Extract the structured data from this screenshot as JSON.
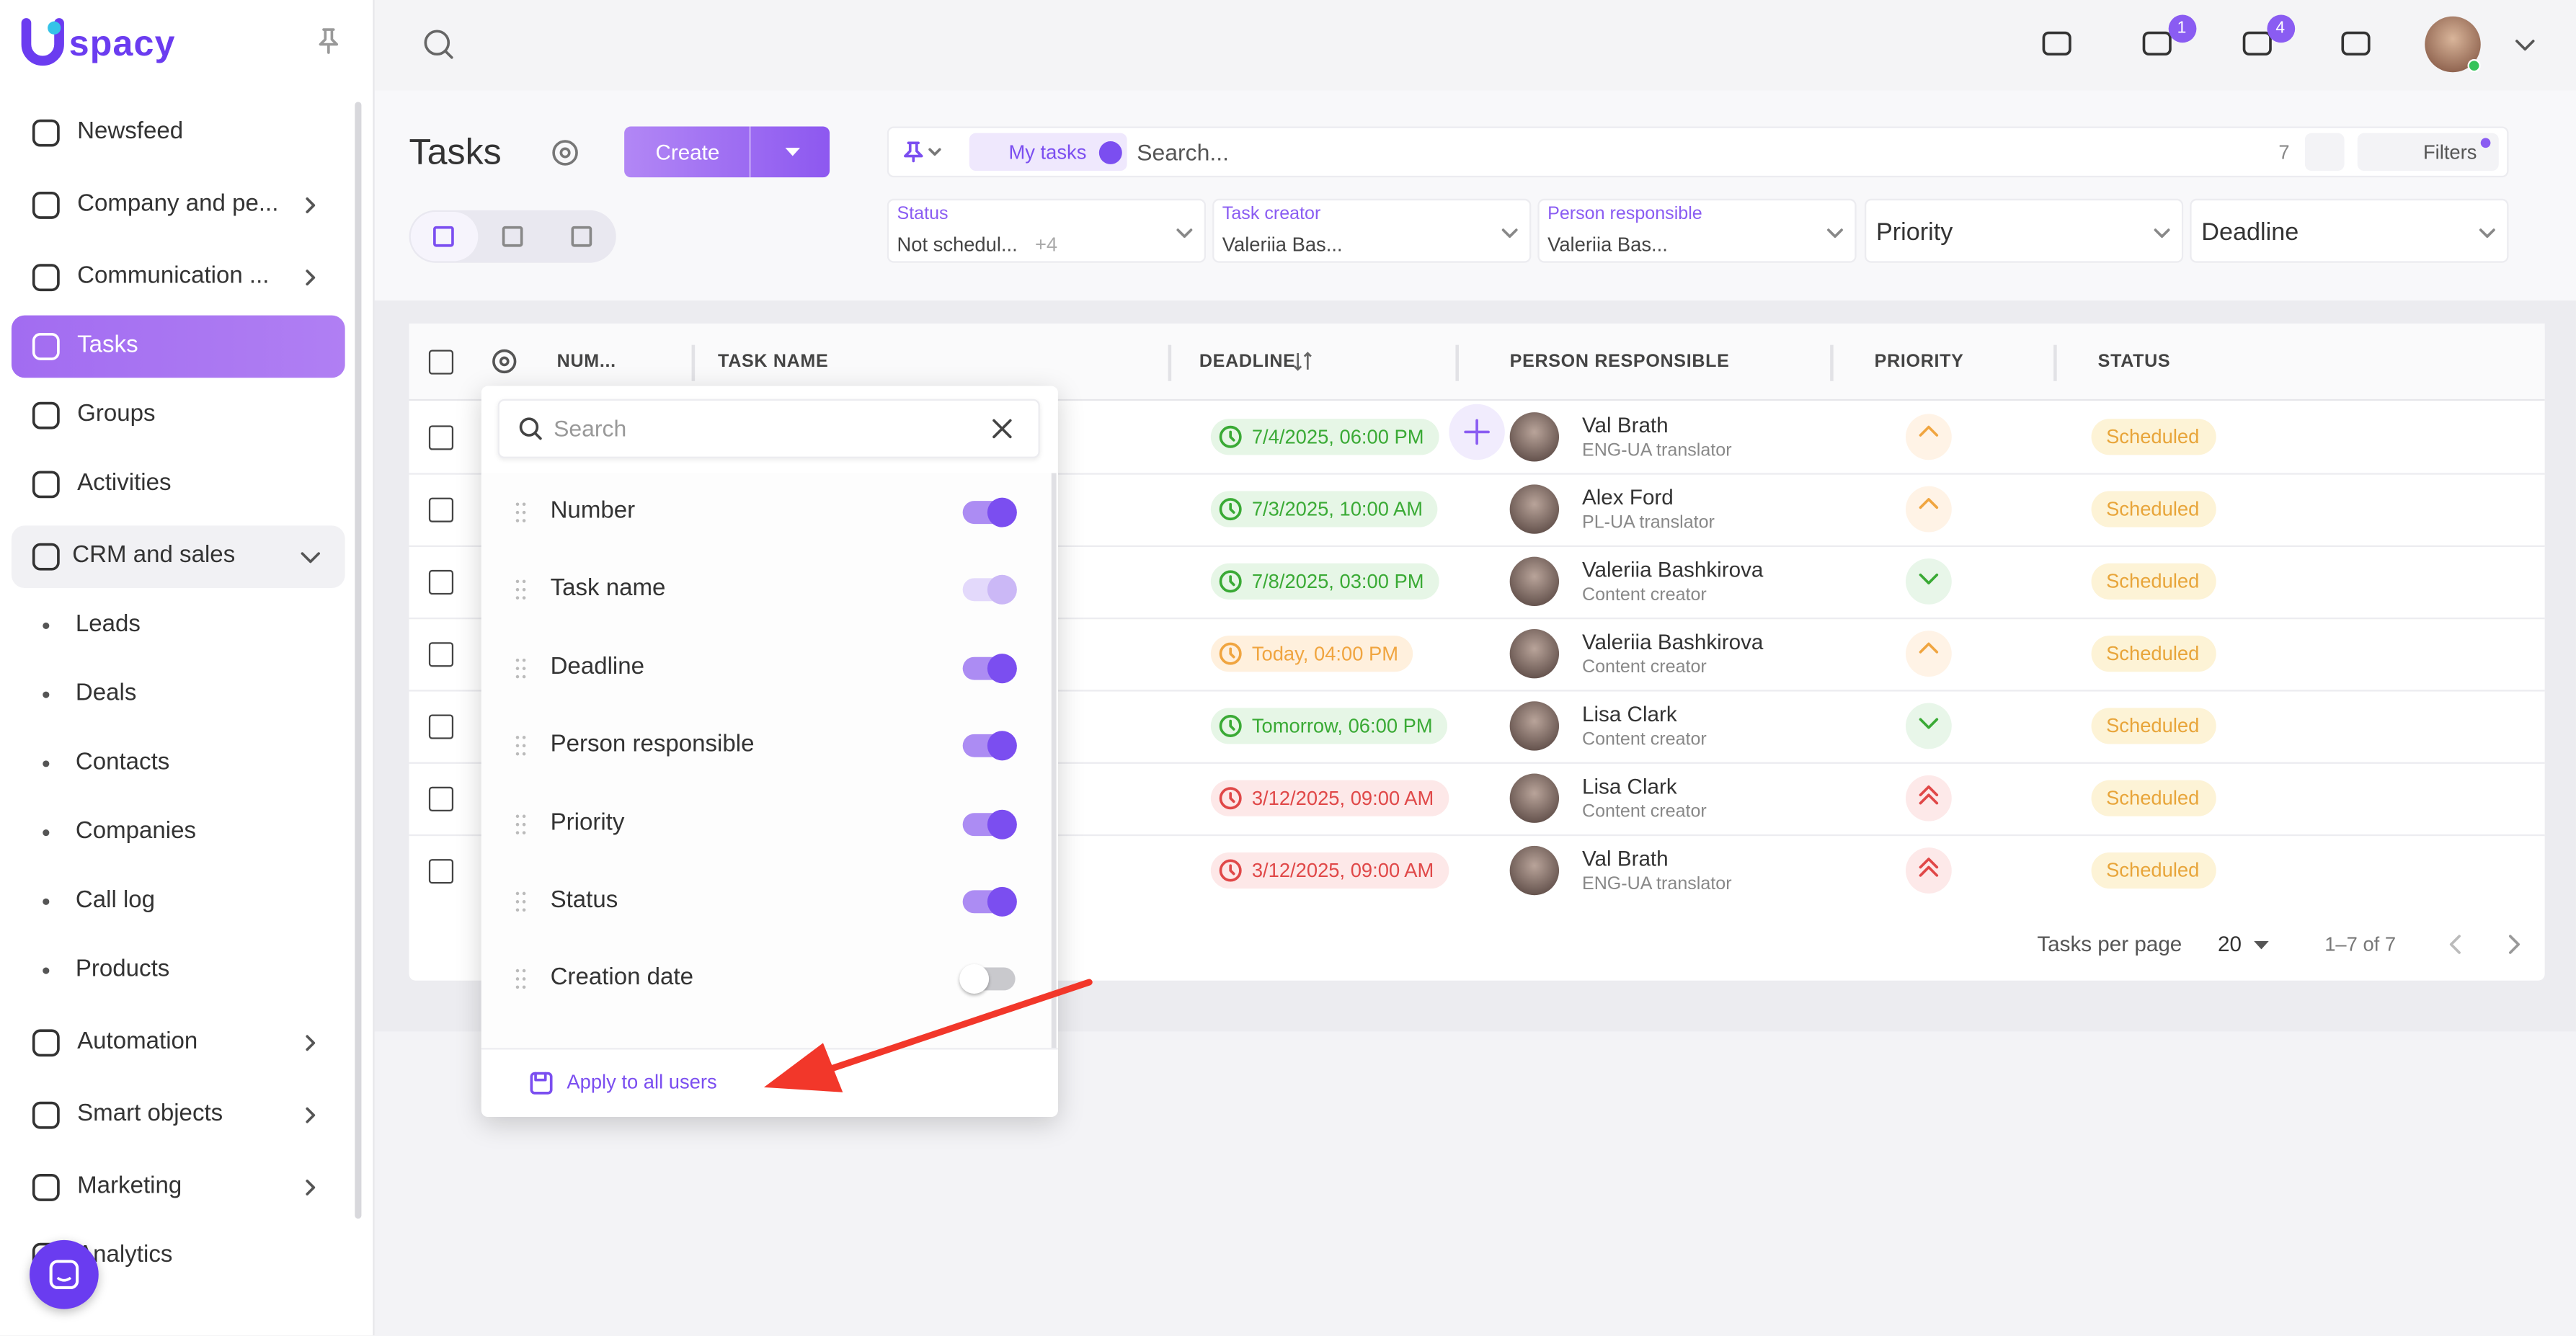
{
  "sidebar": {
    "logo": "spacy",
    "items": [
      {
        "label": "Newsfeed",
        "icon": "home"
      },
      {
        "label": "Company and pe...",
        "icon": "building",
        "arrow": true
      },
      {
        "label": "Communication ...",
        "icon": "chat",
        "arrow": true
      },
      {
        "label": "Tasks",
        "icon": "check",
        "active": true
      },
      {
        "label": "Groups",
        "icon": "users"
      },
      {
        "label": "Activities",
        "icon": "calendar"
      },
      {
        "label": "CRM and sales",
        "icon": "stack",
        "expanded": true
      },
      {
        "label": "Leads",
        "sub": true
      },
      {
        "label": "Deals",
        "sub": true
      },
      {
        "label": "Contacts",
        "sub": true
      },
      {
        "label": "Companies",
        "sub": true
      },
      {
        "label": "Call log",
        "sub": true
      },
      {
        "label": "Products",
        "sub": true
      },
      {
        "label": "Automation",
        "icon": "bolt",
        "arrow": true
      },
      {
        "label": "Smart objects",
        "icon": "scan",
        "arrow": true
      },
      {
        "label": "Marketing",
        "icon": "pen",
        "arrow": true
      },
      {
        "label": "Analytics",
        "icon": "chart"
      }
    ]
  },
  "header": {
    "badges": [
      1,
      4
    ]
  },
  "page": {
    "title": "Tasks",
    "create": "Create",
    "filter_chip": "My tasks",
    "search": "Search...",
    "count": 7,
    "filters_button": "Filters",
    "filters": [
      {
        "label": "Status",
        "value": "Not schedul...",
        "extra": "+4"
      },
      {
        "label": "Task creator",
        "value": "Valeriia Bas..."
      },
      {
        "label": "Person responsible",
        "value": "Valeriia Bas..."
      },
      {
        "placeholder": "Priority"
      },
      {
        "placeholder": "Deadline"
      }
    ]
  },
  "table": {
    "columns": [
      "NUM...",
      "TASK NAME",
      "DEADLINE",
      "PERSON RESPONSIBLE",
      "PRIORITY",
      "STATUS"
    ],
    "rows": [
      {
        "deadline": "7/4/2025, 06:00 PM",
        "state": "ok",
        "person": "Val Brath",
        "role": "ENG-UA translator",
        "priority": "up",
        "status": "Scheduled"
      },
      {
        "deadline": "7/3/2025, 10:00 AM",
        "state": "ok",
        "person": "Alex Ford",
        "role": "PL-UA translator",
        "priority": "up",
        "status": "Scheduled"
      },
      {
        "deadline": "7/8/2025, 03:00 PM",
        "state": "ok",
        "person": "Valeriia Bashkirova",
        "role": "Content creator",
        "priority": "down",
        "status": "Scheduled"
      },
      {
        "deadline": "Today, 04:00 PM",
        "state": "today",
        "person": "Valeriia Bashkirova",
        "role": "Content creator",
        "priority": "up",
        "status": "Scheduled"
      },
      {
        "deadline": "Tomorrow, 06:00 PM",
        "state": "ok",
        "person": "Lisa Clark",
        "role": "Content creator",
        "priority": "down",
        "status": "Scheduled"
      },
      {
        "deadline": "3/12/2025, 09:00 AM",
        "state": "overdue",
        "person": "Lisa Clark",
        "role": "Content creator",
        "priority": "high",
        "status": "Scheduled"
      },
      {
        "deadline": "3/12/2025, 09:00 AM",
        "state": "overdue",
        "person": "Val Brath",
        "role": "ENG-UA translator",
        "priority": "high",
        "status": "Scheduled"
      }
    ]
  },
  "footer": {
    "per_page_label": "Tasks per page",
    "per_page": 20,
    "range": "1–7 of 7"
  },
  "column_menu": {
    "search": "Search",
    "columns": [
      {
        "label": "Number",
        "on": true
      },
      {
        "label": "Task name",
        "on": true,
        "locked": true
      },
      {
        "label": "Deadline",
        "on": true
      },
      {
        "label": "Person responsible",
        "on": true
      },
      {
        "label": "Priority",
        "on": true
      },
      {
        "label": "Status",
        "on": true
      },
      {
        "label": "Creation date",
        "on": false
      }
    ],
    "apply": "Apply to all users"
  }
}
